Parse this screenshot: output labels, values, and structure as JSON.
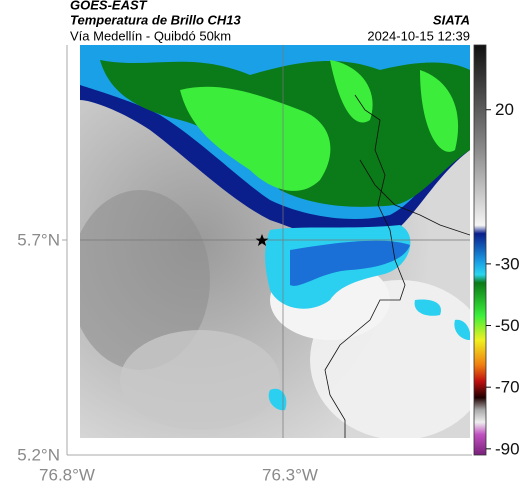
{
  "header": {
    "source": "GOES-EAST",
    "product": "Temperatura de Brillo CH13",
    "route": "Vía Medellín - Quibdó 50km",
    "agency": "SIATA",
    "datetime": "2024-10-15 12:39"
  },
  "axes": {
    "lat_labels": [
      "5.7°N",
      "5.2°N"
    ],
    "lon_labels": [
      "76.8°W",
      "76.3°W"
    ]
  },
  "colorbar": {
    "range": [
      -92,
      41
    ],
    "ticks": [
      20,
      -30,
      -50,
      -70,
      -90
    ]
  }
}
